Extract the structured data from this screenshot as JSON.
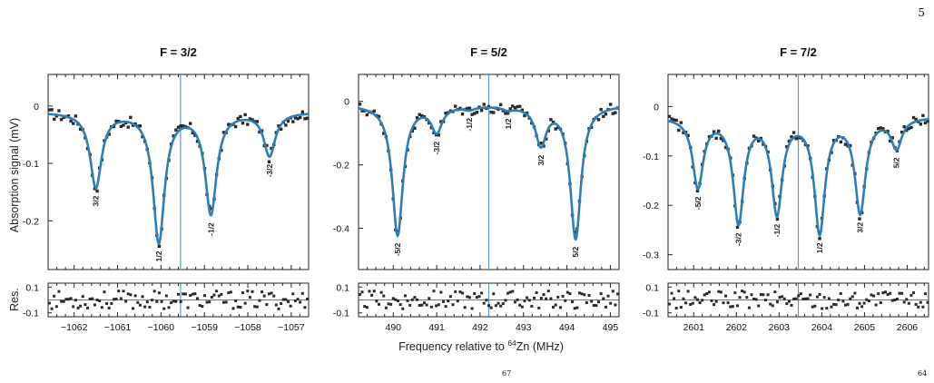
{
  "page_number": "5",
  "footer_superscripts": [
    "67",
    "64"
  ],
  "colors": {
    "fit": "#2d7db8",
    "center_line": "#5b9ad1",
    "data": "#2a2a2a"
  },
  "shared_xlabel_pre": "Frequency relative to ",
  "shared_xlabel_sup": "64",
  "shared_xlabel_post": "Zn (MHz)",
  "shared_ylabel": "Absorption signal (mV)",
  "residual_ylabel": "Res.",
  "chart_data": [
    {
      "type": "scatter",
      "title": "F = 3/2",
      "xlim": [
        -1062.6,
        -1056.6
      ],
      "ylim": [
        -0.285,
        0.055
      ],
      "xticks": [
        -1062,
        -1061,
        -1060,
        -1059,
        -1058,
        -1057
      ],
      "xticklabels": [
        "−1062",
        "−1061",
        "−1060",
        "−1059",
        "−1058",
        "−1057"
      ],
      "yticks": [
        0,
        -0.1,
        -0.2
      ],
      "yticklabels": [
        "0",
        "-0.1",
        "-0.2"
      ],
      "center_line_x": -1059.55,
      "baseline": -0.01,
      "peaks": [
        {
          "x": -1061.5,
          "depth": 0.13,
          "label": "3/2"
        },
        {
          "x": -1060.05,
          "depth": 0.225,
          "label": "1/2"
        },
        {
          "x": -1058.85,
          "depth": 0.175,
          "label": "-1/2"
        },
        {
          "x": -1057.5,
          "depth": 0.075,
          "label": "-3/2"
        }
      ],
      "width": 0.16,
      "residual": {
        "ylim": [
          -0.13,
          0.13
        ],
        "yticks": [
          0.1,
          -0.1
        ],
        "yticklabels": [
          "0.1",
          "-0.1"
        ]
      }
    },
    {
      "type": "scatter",
      "title": "F = 5/2",
      "xlim": [
        489.2,
        495.2
      ],
      "ylim": [
        -0.53,
        0.085
      ],
      "xticks": [
        490,
        491,
        492,
        493,
        494,
        495
      ],
      "xticklabels": [
        "490",
        "491",
        "492",
        "493",
        "494",
        "495"
      ],
      "yticks": [
        0,
        -0.2,
        -0.4
      ],
      "yticklabels": [
        "0",
        "-0.2",
        "-0.4"
      ],
      "center_line_x": 492.2,
      "baseline": -0.01,
      "peaks": [
        {
          "x": 490.1,
          "depth": 0.41,
          "label": "-5/2"
        },
        {
          "x": 491.0,
          "depth": 0.08,
          "label": "-3/2"
        },
        {
          "x": 491.75,
          "depth": 0.01,
          "label": "-1/2"
        },
        {
          "x": 492.65,
          "depth": 0.01,
          "label": "1/2"
        },
        {
          "x": 493.4,
          "depth": 0.12,
          "label": "3/2"
        },
        {
          "x": 494.2,
          "depth": 0.42,
          "label": "5/2"
        }
      ],
      "width": 0.15,
      "residual": {
        "ylim": [
          -0.13,
          0.13
        ],
        "yticks": [
          0.1,
          -0.1
        ],
        "yticklabels": [
          "0.1",
          "-0.1"
        ]
      }
    },
    {
      "type": "scatter",
      "title": "F = 7/2",
      "xlim": [
        2600.4,
        2606.5
      ],
      "ylim": [
        -0.33,
        0.065
      ],
      "xticks": [
        2601,
        2602,
        2603,
        2604,
        2605,
        2606
      ],
      "xticklabels": [
        "2601",
        "2602",
        "2603",
        "2604",
        "2605",
        "2606"
      ],
      "yticks": [
        0,
        -0.1,
        -0.2,
        -0.3
      ],
      "yticklabels": [
        "0",
        "-0.1",
        "-0.2",
        "-0.3"
      ],
      "center_line_x": 2603.45,
      "baseline": -0.02,
      "peaks": [
        {
          "x": 2601.1,
          "depth": 0.14,
          "label": "-5/2"
        },
        {
          "x": 2602.05,
          "depth": 0.21,
          "label": "-3/2"
        },
        {
          "x": 2602.95,
          "depth": 0.19,
          "label": "-1/2"
        },
        {
          "x": 2603.95,
          "depth": 0.23,
          "label": "1/2"
        },
        {
          "x": 2604.9,
          "depth": 0.19,
          "label": "3/2"
        },
        {
          "x": 2605.75,
          "depth": 0.06,
          "label": "5/2"
        }
      ],
      "width": 0.15,
      "residual": {
        "ylim": [
          -0.13,
          0.13
        ],
        "yticks": [
          0.1,
          -0.1
        ],
        "yticklabels": [
          "0.1",
          "-0.1"
        ]
      }
    }
  ]
}
